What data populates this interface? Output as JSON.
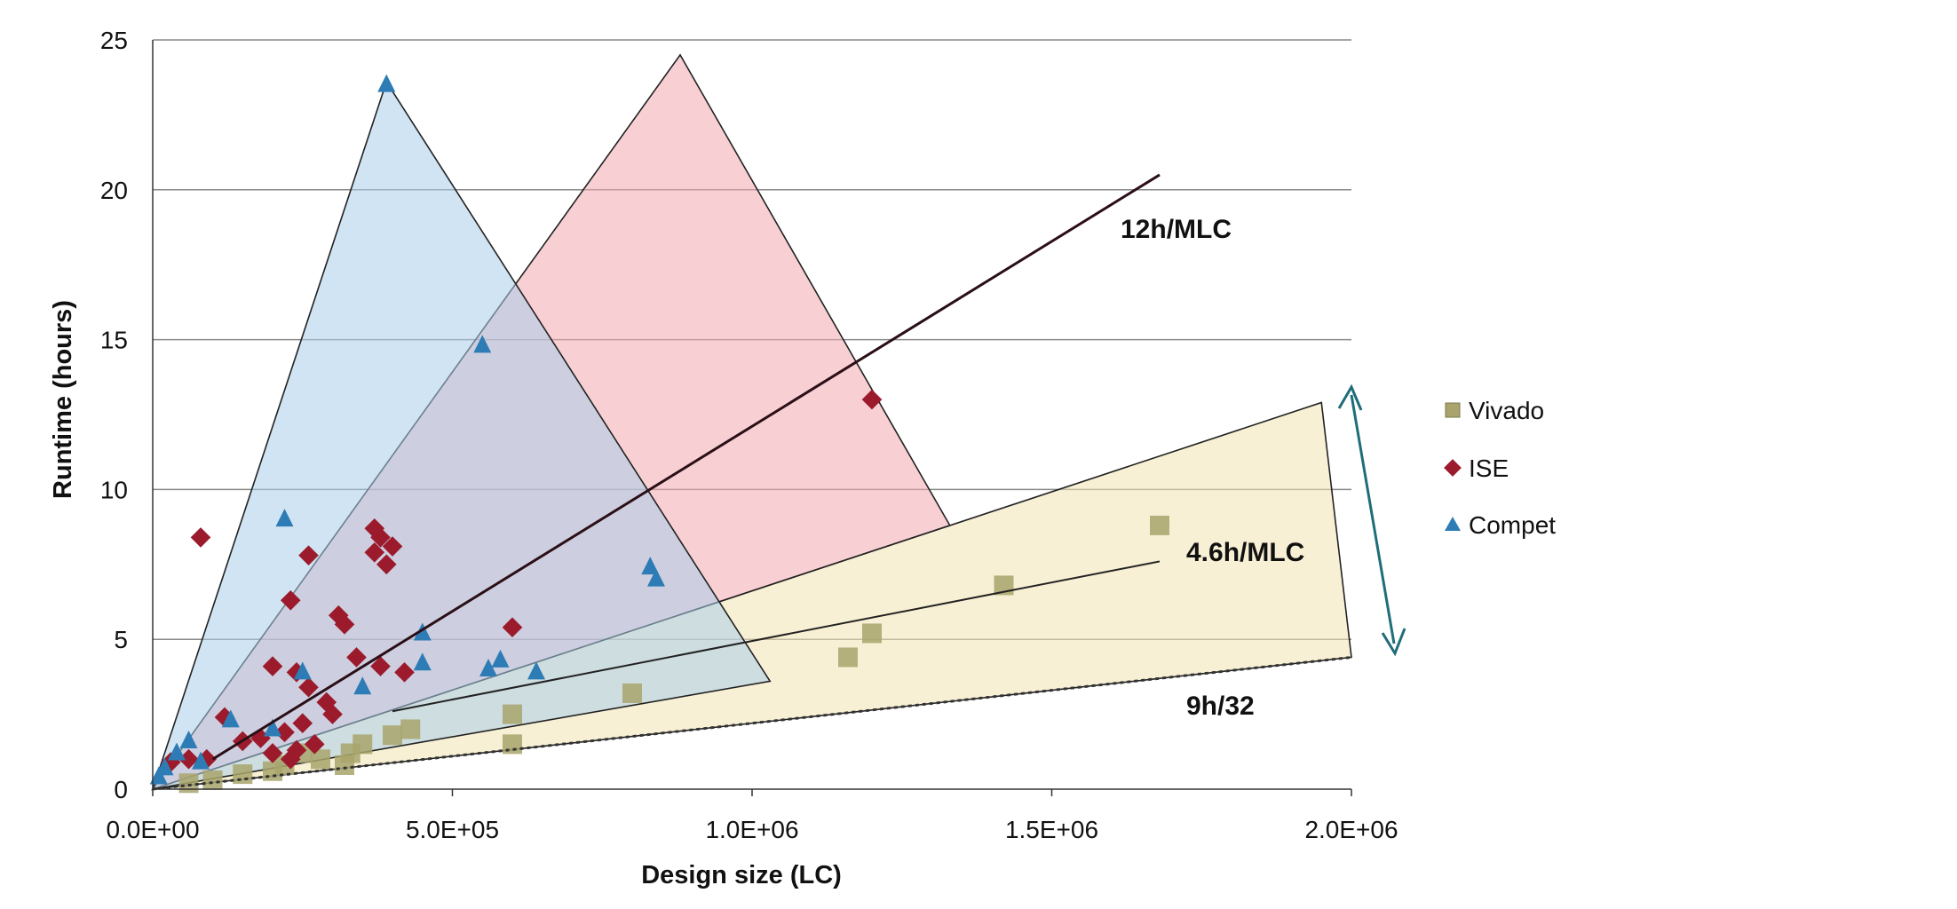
{
  "chart_data": {
    "type": "scatter",
    "xlabel": "Design size (LC)",
    "ylabel": "Runtime (hours)",
    "xlim": [
      0,
      2000000
    ],
    "ylim": [
      0,
      25
    ],
    "x_ticks": [
      0,
      500000,
      1000000,
      1500000,
      2000000
    ],
    "x_tick_labels": [
      "0.0E+00",
      "5.0E+05",
      "1.0E+06",
      "1.5E+06",
      "2.0E+06"
    ],
    "y_ticks": [
      0,
      5,
      10,
      15,
      20,
      25
    ],
    "y_tick_labels": [
      "0",
      "5",
      "10",
      "15",
      "20",
      "25"
    ],
    "grid": "horizontal",
    "legend_position": "right",
    "series": [
      {
        "name": "Vivado",
        "marker": "square",
        "color": "#a8a46c",
        "points": [
          [
            1680000,
            8.8
          ],
          [
            1420000,
            6.8
          ],
          [
            1200000,
            5.2
          ],
          [
            1160000,
            4.4
          ],
          [
            800000,
            3.2
          ],
          [
            600000,
            1.5
          ],
          [
            600000,
            2.5
          ],
          [
            430000,
            2.0
          ],
          [
            400000,
            1.8
          ],
          [
            350000,
            1.5
          ],
          [
            330000,
            1.2
          ],
          [
            320000,
            0.8
          ],
          [
            280000,
            1.0
          ],
          [
            250000,
            1.2
          ],
          [
            220000,
            0.8
          ],
          [
            200000,
            0.6
          ],
          [
            150000,
            0.5
          ],
          [
            100000,
            0.3
          ],
          [
            60000,
            0.2
          ]
        ]
      },
      {
        "name": "ISE",
        "marker": "diamond",
        "color": "#9b1b2c",
        "points": [
          [
            1200000,
            13.0
          ],
          [
            80000,
            8.4
          ],
          [
            370000,
            8.7
          ],
          [
            380000,
            8.4
          ],
          [
            400000,
            8.1
          ],
          [
            370000,
            7.9
          ],
          [
            390000,
            7.5
          ],
          [
            260000,
            7.8
          ],
          [
            230000,
            6.3
          ],
          [
            310000,
            5.8
          ],
          [
            320000,
            5.5
          ],
          [
            600000,
            5.4
          ],
          [
            200000,
            4.1
          ],
          [
            240000,
            3.9
          ],
          [
            380000,
            4.1
          ],
          [
            420000,
            3.9
          ],
          [
            340000,
            4.4
          ],
          [
            260000,
            3.4
          ],
          [
            290000,
            2.9
          ],
          [
            300000,
            2.5
          ],
          [
            250000,
            2.2
          ],
          [
            220000,
            1.9
          ],
          [
            180000,
            1.7
          ],
          [
            270000,
            1.5
          ],
          [
            240000,
            1.3
          ],
          [
            120000,
            2.4
          ],
          [
            150000,
            1.6
          ],
          [
            90000,
            1.0
          ],
          [
            60000,
            1.0
          ],
          [
            30000,
            0.9
          ],
          [
            200000,
            1.2
          ],
          [
            230000,
            1.0
          ]
        ]
      },
      {
        "name": "Compet",
        "marker": "triangle",
        "color": "#2e7cb5",
        "points": [
          [
            390000,
            23.5
          ],
          [
            550000,
            14.8
          ],
          [
            220000,
            9.0
          ],
          [
            830000,
            7.4
          ],
          [
            840000,
            7.0
          ],
          [
            450000,
            5.2
          ],
          [
            450000,
            4.2
          ],
          [
            560000,
            4.0
          ],
          [
            580000,
            4.3
          ],
          [
            640000,
            3.9
          ],
          [
            250000,
            3.9
          ],
          [
            350000,
            3.4
          ],
          [
            200000,
            2.0
          ],
          [
            130000,
            2.3
          ],
          [
            60000,
            1.6
          ],
          [
            40000,
            1.2
          ],
          [
            20000,
            0.7
          ],
          [
            10000,
            0.4
          ],
          [
            80000,
            0.9
          ]
        ]
      }
    ],
    "annotations": [
      {
        "text": "12h/MLC"
      },
      {
        "text": "4.6h/MLC"
      },
      {
        "text": "9h/32"
      }
    ]
  }
}
